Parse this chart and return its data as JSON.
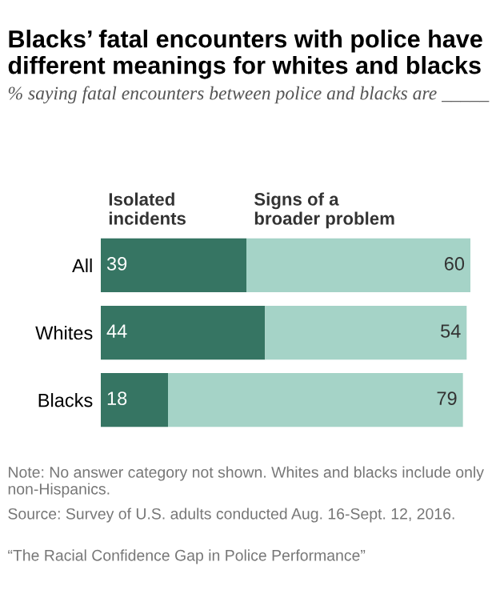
{
  "chart_data": {
    "type": "bar",
    "orientation": "horizontal",
    "stacked": true,
    "title": "Blacks’ fatal encounters with police have different meanings for whites and blacks",
    "subtitle": "% saying fatal encounters between police and blacks are _____",
    "categories": [
      "All",
      "Whites",
      "Blacks"
    ],
    "series": [
      {
        "name": "Isolated incidents",
        "color": "#367563",
        "values": [
          39,
          44,
          18
        ]
      },
      {
        "name": "Signs of a broader problem",
        "color": "#a5d3c7",
        "values": [
          60,
          54,
          79
        ]
      }
    ],
    "data_labels": true,
    "annotations": [
      "Note: No answer category not shown. Whites and blacks include only non-Hispanics.",
      "Source: Survey of U.S. adults conducted Aug. 16-Sept. 12, 2016.",
      "“The Racial Confidence Gap in Police Performance”"
    ]
  }
}
